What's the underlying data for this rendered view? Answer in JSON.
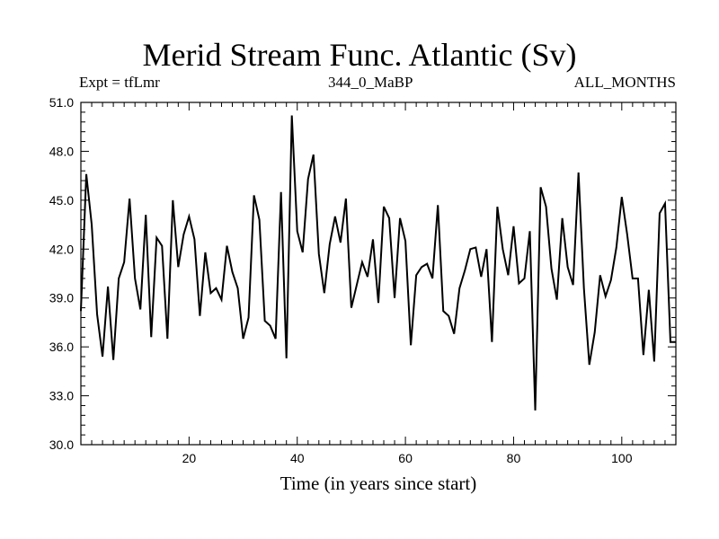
{
  "chart_data": {
    "type": "line",
    "title": "Merid Stream Func. Atlantic (Sv)",
    "subtitle_left": "Expt = tfLmr",
    "subtitle_center": "344_0_MaBP",
    "subtitle_right": "ALL_MONTHS",
    "xlabel": "Time (in years since start)",
    "ylabel": "",
    "xlim": [
      0,
      110
    ],
    "ylim": [
      30.0,
      51.0
    ],
    "xticks": [
      20,
      40,
      60,
      80,
      100
    ],
    "yticks": [
      "30.0",
      "33.0",
      "36.0",
      "39.0",
      "42.0",
      "45.0",
      "48.0",
      "51.0"
    ],
    "grid": false,
    "series": [
      {
        "name": "Merid Stream Func. Atlantic",
        "color": "#000000",
        "x": [
          0,
          1,
          2,
          3,
          4,
          5,
          6,
          7,
          8,
          9,
          10,
          11,
          12,
          13,
          14,
          15,
          16,
          17,
          18,
          19,
          20,
          21,
          22,
          23,
          24,
          25,
          26,
          27,
          28,
          29,
          30,
          31,
          32,
          33,
          34,
          35,
          36,
          37,
          38,
          39,
          40,
          41,
          42,
          43,
          44,
          45,
          46,
          47,
          48,
          49,
          50,
          51,
          52,
          53,
          54,
          55,
          56,
          57,
          58,
          59,
          60,
          61,
          62,
          63,
          64,
          65,
          66,
          67,
          68,
          69,
          70,
          71,
          72,
          73,
          74,
          75,
          76,
          77,
          78,
          79,
          80,
          81,
          82,
          83,
          84,
          85,
          86,
          87,
          88,
          89,
          90,
          91,
          92,
          93,
          94,
          95,
          96,
          97,
          98,
          99,
          100,
          101,
          102,
          103,
          104,
          105,
          106,
          107,
          108,
          109,
          110
        ],
        "values": [
          38.2,
          46.6,
          43.5,
          38.0,
          35.4,
          39.7,
          35.2,
          40.2,
          41.2,
          45.1,
          40.2,
          38.3,
          44.1,
          36.6,
          42.7,
          42.2,
          36.5,
          45.0,
          40.9,
          42.9,
          44.0,
          42.6,
          37.9,
          41.8,
          39.3,
          39.6,
          38.9,
          42.2,
          40.6,
          39.6,
          36.5,
          37.8,
          45.3,
          43.8,
          37.6,
          37.3,
          36.5,
          45.5,
          35.3,
          50.2,
          43.1,
          41.8,
          46.3,
          47.8,
          41.7,
          39.3,
          42.3,
          44.0,
          42.4,
          45.1,
          38.4,
          39.8,
          41.2,
          40.3,
          42.6,
          38.7,
          44.6,
          43.9,
          39.0,
          43.9,
          42.5,
          36.1,
          40.4,
          40.9,
          41.1,
          40.2,
          44.7,
          38.2,
          37.9,
          36.8,
          39.6,
          40.7,
          42.0,
          42.1,
          40.3,
          42.0,
          36.3,
          44.6,
          42.0,
          40.4,
          43.4,
          39.9,
          40.2,
          43.1,
          32.1,
          45.8,
          44.6,
          40.8,
          38.9,
          43.9,
          40.9,
          39.8,
          46.7,
          39.6,
          34.9,
          36.9,
          40.4,
          39.1,
          40.1,
          42.1,
          45.2,
          42.9,
          40.2,
          40.2,
          35.5,
          39.5,
          35.1,
          44.2,
          44.8,
          36.3,
          36.3
        ]
      }
    ]
  }
}
